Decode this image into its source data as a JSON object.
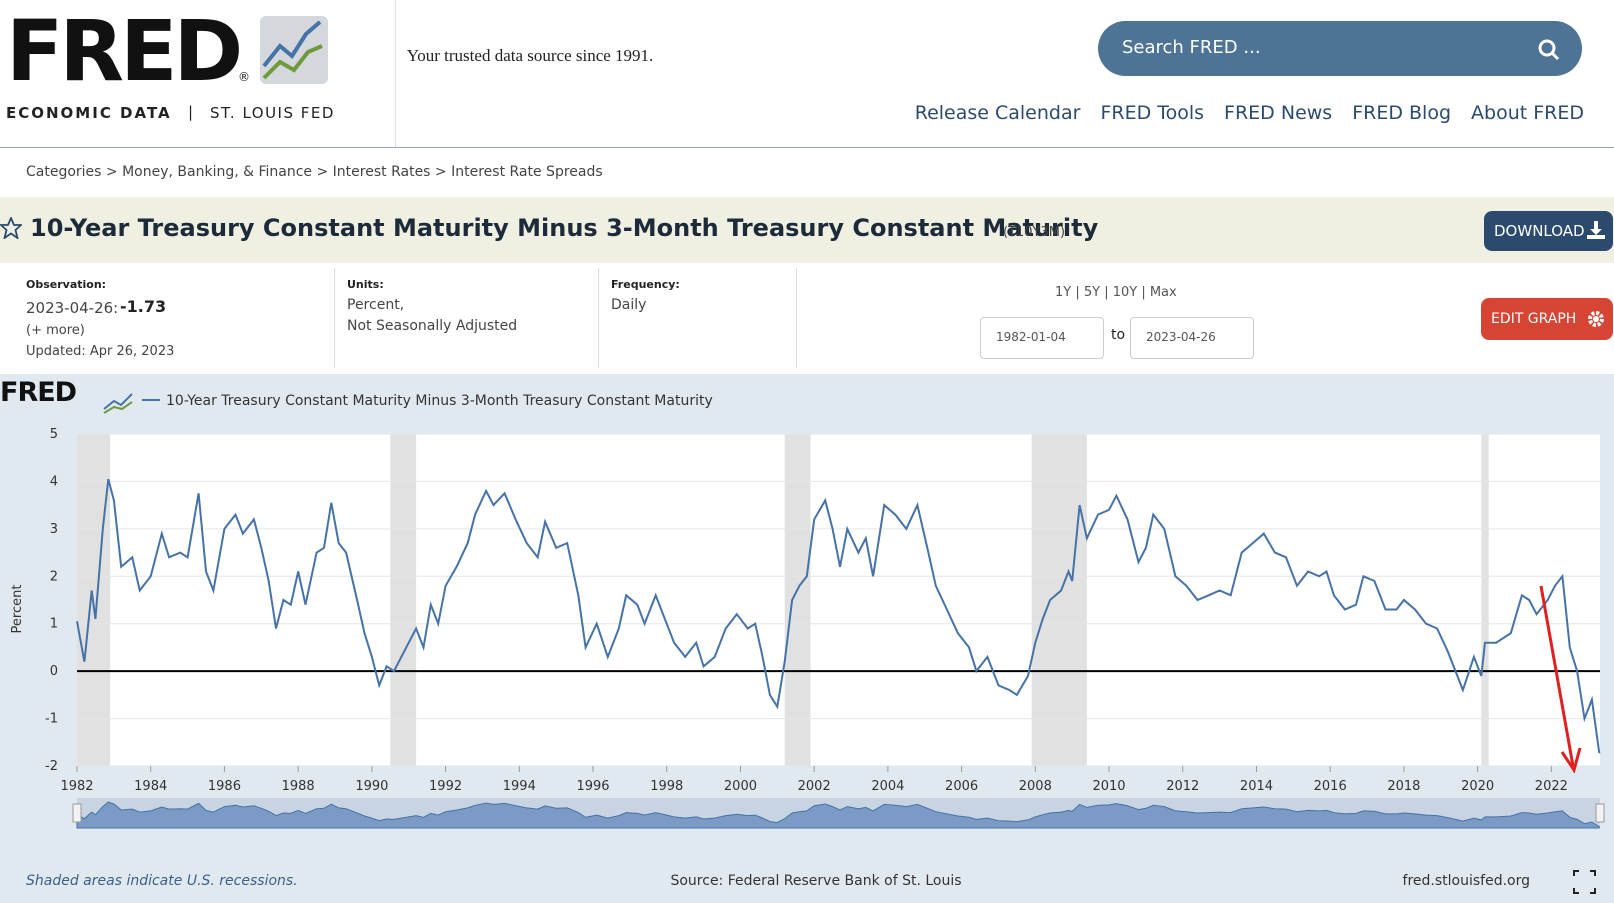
{
  "header": {
    "logo": "FRED",
    "registered": "®",
    "subtitle_left": "ECONOMIC DATA",
    "subtitle_sep": "|",
    "subtitle_right": "ST. LOUIS FED",
    "tagline": "Your trusted data source since 1991.",
    "search_placeholder": "Search FRED ...",
    "nav": [
      "Release Calendar",
      "FRED Tools",
      "FRED News",
      "FRED Blog",
      "About FRED"
    ]
  },
  "breadcrumb": "Categories > Money, Banking, & Finance > Interest Rates > Interest Rate Spreads",
  "series_title": "10-Year Treasury Constant Maturity Minus 3-Month Treasury Constant Maturity",
  "series_id": "(T10Y3M)",
  "download": "DOWNLOAD",
  "info": {
    "observation_label": "Observation:",
    "observation_date": "2023-04-26:",
    "observation_value": "-1.73",
    "more": "(+ more)",
    "updated": "Updated: Apr 26, 2023",
    "units_label": "Units:",
    "units": [
      "Percent,",
      "Not Seasonally Adjusted"
    ],
    "frequency_label": "Frequency:",
    "frequency": "Daily",
    "ranges": "1Y | 5Y | 10Y | Max",
    "start_date": "1982-01-04",
    "to": "to",
    "end_date": "2023-04-26",
    "edit": "EDIT GRAPH"
  },
  "chart_data": {
    "type": "line",
    "brand": "FRED",
    "y_label": "Percent",
    "x": [
      1982.0,
      1982.2,
      1982.4,
      1982.5,
      1982.7,
      1982.85,
      1983.0,
      1983.2,
      1983.5,
      1983.7,
      1984.0,
      1984.3,
      1984.5,
      1984.8,
      1985.0,
      1985.3,
      1985.5,
      1985.7,
      1986.0,
      1986.3,
      1986.5,
      1986.8,
      1987.0,
      1987.2,
      1987.4,
      1987.6,
      1987.8,
      1988.0,
      1988.2,
      1988.5,
      1988.7,
      1988.9,
      1989.1,
      1989.3,
      1989.6,
      1989.8,
      1990.0,
      1990.2,
      1990.4,
      1990.6,
      1991.0,
      1991.2,
      1991.4,
      1991.6,
      1991.8,
      1992.0,
      1992.3,
      1992.6,
      1992.8,
      1993.1,
      1993.3,
      1993.6,
      1993.9,
      1994.2,
      1994.5,
      1994.7,
      1995.0,
      1995.3,
      1995.6,
      1995.8,
      1996.1,
      1996.4,
      1996.7,
      1996.9,
      1997.2,
      1997.4,
      1997.7,
      1998.0,
      1998.2,
      1998.5,
      1998.8,
      1999.0,
      1999.3,
      1999.6,
      1999.9,
      2000.2,
      2000.4,
      2000.6,
      2000.8,
      2001.0,
      2001.2,
      2001.4,
      2001.6,
      2001.8,
      2002.0,
      2002.3,
      2002.5,
      2002.7,
      2002.9,
      2003.2,
      2003.4,
      2003.6,
      2003.9,
      2004.2,
      2004.5,
      2004.8,
      2005.1,
      2005.3,
      2005.6,
      2005.9,
      2006.2,
      2006.4,
      2006.7,
      2007.0,
      2007.3,
      2007.5,
      2007.8,
      2008.0,
      2008.2,
      2008.4,
      2008.7,
      2008.9,
      2009.0,
      2009.2,
      2009.4,
      2009.7,
      2010.0,
      2010.2,
      2010.5,
      2010.8,
      2011.0,
      2011.2,
      2011.5,
      2011.8,
      2012.1,
      2012.4,
      2012.7,
      2013.0,
      2013.3,
      2013.6,
      2013.9,
      2014.2,
      2014.5,
      2014.8,
      2015.1,
      2015.4,
      2015.7,
      2015.9,
      2016.1,
      2016.4,
      2016.7,
      2016.9,
      2017.2,
      2017.5,
      2017.8,
      2018.0,
      2018.3,
      2018.6,
      2018.9,
      2019.2,
      2019.4,
      2019.6,
      2019.9,
      2020.1,
      2020.2,
      2020.5,
      2020.9,
      2021.2,
      2021.4,
      2021.6,
      2021.9,
      2022.1,
      2022.3,
      2022.5,
      2022.7,
      2022.9,
      2023.1,
      2023.3
    ],
    "series": [
      {
        "name": "10-Year Treasury Constant Maturity Minus 3-Month Treasury Constant Maturity",
        "color": "#4572a7",
        "values": [
          1.05,
          0.2,
          1.7,
          1.1,
          3.0,
          4.05,
          3.6,
          2.2,
          2.4,
          1.7,
          2.0,
          2.9,
          2.4,
          2.5,
          2.4,
          3.75,
          2.1,
          1.7,
          3.0,
          3.3,
          2.9,
          3.2,
          2.6,
          1.9,
          0.9,
          1.5,
          1.4,
          2.1,
          1.4,
          2.5,
          2.6,
          3.55,
          2.7,
          2.5,
          1.5,
          0.8,
          0.3,
          -0.3,
          0.1,
          0.0,
          0.6,
          0.9,
          0.5,
          1.4,
          1.0,
          1.8,
          2.2,
          2.7,
          3.3,
          3.8,
          3.5,
          3.75,
          3.2,
          2.7,
          2.4,
          3.15,
          2.6,
          2.7,
          1.6,
          0.5,
          1.0,
          0.3,
          0.9,
          1.6,
          1.4,
          1.0,
          1.6,
          1.0,
          0.6,
          0.3,
          0.6,
          0.1,
          0.3,
          0.9,
          1.2,
          0.9,
          1.0,
          0.3,
          -0.5,
          -0.75,
          0.2,
          1.5,
          1.8,
          2.0,
          3.2,
          3.6,
          3.0,
          2.2,
          3.0,
          2.5,
          2.8,
          2.0,
          3.5,
          3.3,
          3.0,
          3.5,
          2.5,
          1.8,
          1.3,
          0.8,
          0.5,
          0.0,
          0.3,
          -0.3,
          -0.4,
          -0.5,
          -0.1,
          0.6,
          1.1,
          1.5,
          1.7,
          2.1,
          1.9,
          3.5,
          2.8,
          3.3,
          3.4,
          3.7,
          3.2,
          2.3,
          2.6,
          3.3,
          3.0,
          2.0,
          1.8,
          1.5,
          1.6,
          1.7,
          1.6,
          2.5,
          2.7,
          2.9,
          2.5,
          2.4,
          1.8,
          2.1,
          2.0,
          2.1,
          1.6,
          1.3,
          1.4,
          2.0,
          1.9,
          1.3,
          1.3,
          1.5,
          1.3,
          1.0,
          0.9,
          0.4,
          0.0,
          -0.4,
          0.3,
          -0.1,
          0.6,
          0.6,
          0.8,
          1.6,
          1.5,
          1.2,
          1.5,
          1.8,
          2.0,
          0.5,
          0.0,
          -1.0,
          -0.6,
          -1.73
        ]
      }
    ],
    "recessions": [
      [
        1982.0,
        1982.9
      ],
      [
        1990.5,
        1991.2
      ],
      [
        2001.2,
        2001.9
      ],
      [
        2007.9,
        2009.4
      ],
      [
        2020.1,
        2020.3
      ]
    ],
    "recession_color": "#e1e1e1",
    "reference_line": 0,
    "xlim": [
      1982,
      2023.32
    ],
    "xticks": [
      1982,
      1984,
      1986,
      1988,
      1990,
      1992,
      1994,
      1996,
      1998,
      2000,
      2002,
      2004,
      2006,
      2008,
      2010,
      2012,
      2014,
      2016,
      2018,
      2020,
      2022
    ],
    "ylim": [
      -2,
      5
    ],
    "yticks": [
      -2,
      -1,
      0,
      1,
      2,
      3,
      4,
      5
    ],
    "grid": true,
    "footnote": "Shaded areas indicate U.S. recessions.",
    "source": "Source: Federal Reserve Bank of St. Louis",
    "site": "fred.stlouisfed.org"
  }
}
